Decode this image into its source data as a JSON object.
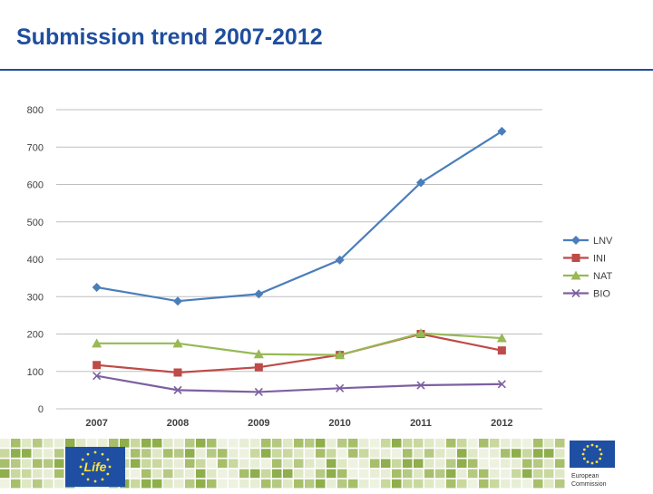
{
  "header": {
    "title": "Submission trend 2007-2012"
  },
  "chart_data": {
    "type": "line",
    "title": "",
    "xlabel": "",
    "ylabel": "",
    "categories": [
      "2007",
      "2008",
      "2009",
      "2010",
      "2011",
      "2012"
    ],
    "ylim": [
      0,
      800
    ],
    "yticks": [
      "0",
      "100",
      "200",
      "300",
      "400",
      "500",
      "600",
      "700",
      "800"
    ],
    "grid": true,
    "legend_position": "right",
    "series": [
      {
        "name": "LNV",
        "values": [
          325,
          288,
          307,
          398,
          605,
          742
        ],
        "color": "#4a7ebb",
        "marker": "diamond"
      },
      {
        "name": "INI",
        "values": [
          117,
          97,
          111,
          144,
          200,
          156
        ],
        "color": "#be4b48",
        "marker": "square"
      },
      {
        "name": "NAT",
        "values": [
          175,
          175,
          146,
          144,
          202,
          189
        ],
        "color": "#98b954",
        "marker": "triangle"
      },
      {
        "name": "BIO",
        "values": [
          88,
          50,
          45,
          55,
          63,
          66
        ],
        "color": "#7d60a0",
        "marker": "x"
      }
    ]
  },
  "footer": {
    "life_logo_text": "Life",
    "ec_logo_line1": "European",
    "ec_logo_line2": "Commission"
  }
}
